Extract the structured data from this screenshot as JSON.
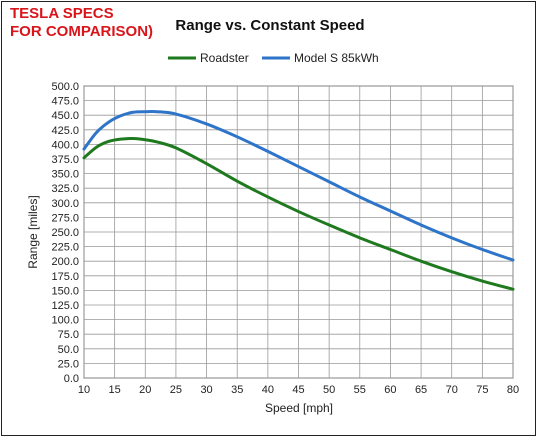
{
  "overlay": {
    "line1": "TESLA SPECS",
    "line2": "FOR COMPARISON)",
    "color": "#d9151b"
  },
  "chart_data": {
    "type": "line",
    "title": "Range vs. Constant Speed",
    "xlabel": "Speed [mph]",
    "ylabel": "Range [miles]",
    "xlim": [
      10,
      80
    ],
    "ylim": [
      0,
      500
    ],
    "x_ticks": [
      10,
      15,
      20,
      25,
      30,
      35,
      40,
      45,
      50,
      55,
      60,
      65,
      70,
      75,
      80
    ],
    "x_tick_labels": [
      "10",
      "15",
      "20",
      "25",
      "30",
      "35",
      "40",
      "45",
      "50",
      "55",
      "60",
      "65",
      "70",
      "75",
      "80"
    ],
    "y_ticks": [
      0,
      25,
      50,
      75,
      100,
      125,
      150,
      175,
      200,
      225,
      250,
      275,
      300,
      325,
      350,
      375,
      400,
      425,
      450,
      475,
      500
    ],
    "y_tick_labels": [
      "0.0",
      "25.0",
      "50.0",
      "75.0",
      "100.0",
      "125.0",
      "150.0",
      "175.0",
      "200.0",
      "225.0",
      "250.0",
      "275.0",
      "300.0",
      "325.0",
      "350.0",
      "375.0",
      "400.0",
      "425.0",
      "450.0",
      "475.0",
      "500.0"
    ],
    "grid": true,
    "legend_position": "top",
    "series": [
      {
        "name": "Roadster",
        "color": "#1f7a1f",
        "x": [
          10,
          12,
          14,
          16,
          18,
          20,
          22,
          25,
          30,
          35,
          40,
          45,
          50,
          55,
          60,
          65,
          70,
          75,
          80
        ],
        "y": [
          377,
          395,
          405,
          409,
          410,
          408,
          404,
          394,
          367,
          337,
          310,
          285,
          262,
          240,
          220,
          200,
          182,
          166,
          152
        ]
      },
      {
        "name": "Model S 85kWh",
        "color": "#2e75c9",
        "x": [
          10,
          12,
          14,
          16,
          18,
          20,
          22,
          25,
          30,
          35,
          40,
          45,
          50,
          55,
          60,
          65,
          70,
          75,
          80
        ],
        "y": [
          392,
          420,
          438,
          449,
          455,
          456,
          456,
          452,
          435,
          413,
          388,
          362,
          336,
          310,
          286,
          262,
          240,
          220,
          202
        ]
      }
    ]
  }
}
